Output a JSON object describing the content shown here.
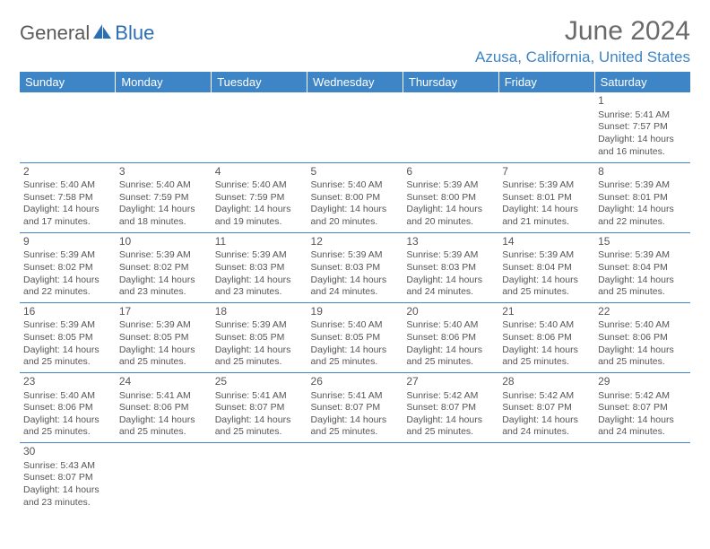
{
  "logo": {
    "text1": "General",
    "text2": "Blue"
  },
  "title": "June 2024",
  "location": "Azusa, California, United States",
  "colors": {
    "header_bg": "#3d85c6",
    "header_fg": "#ffffff",
    "text": "#555555",
    "location": "#3d85c6",
    "border": "#3d85c6"
  },
  "day_headers": [
    "Sunday",
    "Monday",
    "Tuesday",
    "Wednesday",
    "Thursday",
    "Friday",
    "Saturday"
  ],
  "weeks": [
    [
      {
        "n": "",
        "sr": "",
        "ss": "",
        "dl": ""
      },
      {
        "n": "",
        "sr": "",
        "ss": "",
        "dl": ""
      },
      {
        "n": "",
        "sr": "",
        "ss": "",
        "dl": ""
      },
      {
        "n": "",
        "sr": "",
        "ss": "",
        "dl": ""
      },
      {
        "n": "",
        "sr": "",
        "ss": "",
        "dl": ""
      },
      {
        "n": "",
        "sr": "",
        "ss": "",
        "dl": ""
      },
      {
        "n": "1",
        "sr": "Sunrise: 5:41 AM",
        "ss": "Sunset: 7:57 PM",
        "dl": "Daylight: 14 hours and 16 minutes."
      }
    ],
    [
      {
        "n": "2",
        "sr": "Sunrise: 5:40 AM",
        "ss": "Sunset: 7:58 PM",
        "dl": "Daylight: 14 hours and 17 minutes."
      },
      {
        "n": "3",
        "sr": "Sunrise: 5:40 AM",
        "ss": "Sunset: 7:59 PM",
        "dl": "Daylight: 14 hours and 18 minutes."
      },
      {
        "n": "4",
        "sr": "Sunrise: 5:40 AM",
        "ss": "Sunset: 7:59 PM",
        "dl": "Daylight: 14 hours and 19 minutes."
      },
      {
        "n": "5",
        "sr": "Sunrise: 5:40 AM",
        "ss": "Sunset: 8:00 PM",
        "dl": "Daylight: 14 hours and 20 minutes."
      },
      {
        "n": "6",
        "sr": "Sunrise: 5:39 AM",
        "ss": "Sunset: 8:00 PM",
        "dl": "Daylight: 14 hours and 20 minutes."
      },
      {
        "n": "7",
        "sr": "Sunrise: 5:39 AM",
        "ss": "Sunset: 8:01 PM",
        "dl": "Daylight: 14 hours and 21 minutes."
      },
      {
        "n": "8",
        "sr": "Sunrise: 5:39 AM",
        "ss": "Sunset: 8:01 PM",
        "dl": "Daylight: 14 hours and 22 minutes."
      }
    ],
    [
      {
        "n": "9",
        "sr": "Sunrise: 5:39 AM",
        "ss": "Sunset: 8:02 PM",
        "dl": "Daylight: 14 hours and 22 minutes."
      },
      {
        "n": "10",
        "sr": "Sunrise: 5:39 AM",
        "ss": "Sunset: 8:02 PM",
        "dl": "Daylight: 14 hours and 23 minutes."
      },
      {
        "n": "11",
        "sr": "Sunrise: 5:39 AM",
        "ss": "Sunset: 8:03 PM",
        "dl": "Daylight: 14 hours and 23 minutes."
      },
      {
        "n": "12",
        "sr": "Sunrise: 5:39 AM",
        "ss": "Sunset: 8:03 PM",
        "dl": "Daylight: 14 hours and 24 minutes."
      },
      {
        "n": "13",
        "sr": "Sunrise: 5:39 AM",
        "ss": "Sunset: 8:03 PM",
        "dl": "Daylight: 14 hours and 24 minutes."
      },
      {
        "n": "14",
        "sr": "Sunrise: 5:39 AM",
        "ss": "Sunset: 8:04 PM",
        "dl": "Daylight: 14 hours and 25 minutes."
      },
      {
        "n": "15",
        "sr": "Sunrise: 5:39 AM",
        "ss": "Sunset: 8:04 PM",
        "dl": "Daylight: 14 hours and 25 minutes."
      }
    ],
    [
      {
        "n": "16",
        "sr": "Sunrise: 5:39 AM",
        "ss": "Sunset: 8:05 PM",
        "dl": "Daylight: 14 hours and 25 minutes."
      },
      {
        "n": "17",
        "sr": "Sunrise: 5:39 AM",
        "ss": "Sunset: 8:05 PM",
        "dl": "Daylight: 14 hours and 25 minutes."
      },
      {
        "n": "18",
        "sr": "Sunrise: 5:39 AM",
        "ss": "Sunset: 8:05 PM",
        "dl": "Daylight: 14 hours and 25 minutes."
      },
      {
        "n": "19",
        "sr": "Sunrise: 5:40 AM",
        "ss": "Sunset: 8:05 PM",
        "dl": "Daylight: 14 hours and 25 minutes."
      },
      {
        "n": "20",
        "sr": "Sunrise: 5:40 AM",
        "ss": "Sunset: 8:06 PM",
        "dl": "Daylight: 14 hours and 25 minutes."
      },
      {
        "n": "21",
        "sr": "Sunrise: 5:40 AM",
        "ss": "Sunset: 8:06 PM",
        "dl": "Daylight: 14 hours and 25 minutes."
      },
      {
        "n": "22",
        "sr": "Sunrise: 5:40 AM",
        "ss": "Sunset: 8:06 PM",
        "dl": "Daylight: 14 hours and 25 minutes."
      }
    ],
    [
      {
        "n": "23",
        "sr": "Sunrise: 5:40 AM",
        "ss": "Sunset: 8:06 PM",
        "dl": "Daylight: 14 hours and 25 minutes."
      },
      {
        "n": "24",
        "sr": "Sunrise: 5:41 AM",
        "ss": "Sunset: 8:06 PM",
        "dl": "Daylight: 14 hours and 25 minutes."
      },
      {
        "n": "25",
        "sr": "Sunrise: 5:41 AM",
        "ss": "Sunset: 8:07 PM",
        "dl": "Daylight: 14 hours and 25 minutes."
      },
      {
        "n": "26",
        "sr": "Sunrise: 5:41 AM",
        "ss": "Sunset: 8:07 PM",
        "dl": "Daylight: 14 hours and 25 minutes."
      },
      {
        "n": "27",
        "sr": "Sunrise: 5:42 AM",
        "ss": "Sunset: 8:07 PM",
        "dl": "Daylight: 14 hours and 25 minutes."
      },
      {
        "n": "28",
        "sr": "Sunrise: 5:42 AM",
        "ss": "Sunset: 8:07 PM",
        "dl": "Daylight: 14 hours and 24 minutes."
      },
      {
        "n": "29",
        "sr": "Sunrise: 5:42 AM",
        "ss": "Sunset: 8:07 PM",
        "dl": "Daylight: 14 hours and 24 minutes."
      }
    ],
    [
      {
        "n": "30",
        "sr": "Sunrise: 5:43 AM",
        "ss": "Sunset: 8:07 PM",
        "dl": "Daylight: 14 hours and 23 minutes."
      },
      {
        "n": "",
        "sr": "",
        "ss": "",
        "dl": ""
      },
      {
        "n": "",
        "sr": "",
        "ss": "",
        "dl": ""
      },
      {
        "n": "",
        "sr": "",
        "ss": "",
        "dl": ""
      },
      {
        "n": "",
        "sr": "",
        "ss": "",
        "dl": ""
      },
      {
        "n": "",
        "sr": "",
        "ss": "",
        "dl": ""
      },
      {
        "n": "",
        "sr": "",
        "ss": "",
        "dl": ""
      }
    ]
  ]
}
